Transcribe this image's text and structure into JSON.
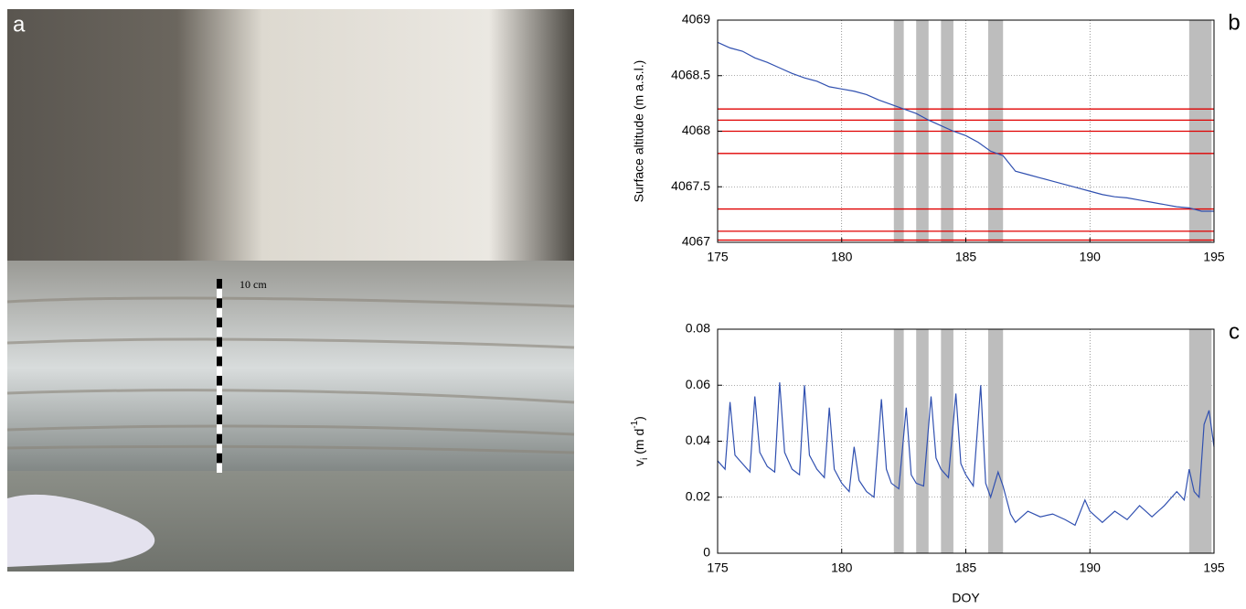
{
  "photo": {
    "panel_label": "a",
    "scale_label": "10 cm"
  },
  "chart_data": [
    {
      "type": "line",
      "panel_label": "b",
      "y_label": "Surface altitude (m a.s.l.)",
      "x": [
        175,
        175.5,
        176,
        176.5,
        177,
        177.5,
        178,
        178.5,
        179,
        179.5,
        180,
        180.5,
        181,
        181.5,
        182,
        182.5,
        183,
        183.5,
        184,
        184.5,
        185,
        185.5,
        186,
        186.5,
        187,
        187.5,
        188,
        188.5,
        189,
        189.5,
        190,
        190.5,
        191,
        191.5,
        192,
        192.5,
        193,
        193.5,
        194,
        194.5,
        195
      ],
      "values": [
        4068.8,
        4068.75,
        4068.72,
        4068.66,
        4068.62,
        4068.57,
        4068.52,
        4068.48,
        4068.45,
        4068.4,
        4068.38,
        4068.36,
        4068.33,
        4068.28,
        4068.24,
        4068.2,
        4068.16,
        4068.1,
        4068.05,
        4068.0,
        4067.96,
        4067.9,
        4067.82,
        4067.78,
        4067.64,
        4067.61,
        4067.58,
        4067.55,
        4067.52,
        4067.49,
        4067.46,
        4067.43,
        4067.41,
        4067.4,
        4067.38,
        4067.36,
        4067.34,
        4067.32,
        4067.31,
        4067.28,
        4067.28
      ],
      "color": "#3050b0",
      "hlines": [
        4068.2,
        4068.1,
        4068.0,
        4067.8,
        4067.3,
        4067.1,
        4067.02
      ],
      "hline_color": "#e00000",
      "shaded_spans": [
        [
          182.1,
          182.5
        ],
        [
          183.0,
          183.5
        ],
        [
          184.0,
          184.5
        ],
        [
          185.9,
          186.5
        ],
        [
          194.0,
          194.9
        ]
      ],
      "span_color": "#bdbdbd",
      "xlim": [
        175,
        195
      ],
      "xticks": [
        175,
        180,
        185,
        190,
        195
      ],
      "ylim": [
        4067,
        4069
      ],
      "yticks": [
        4067,
        4067.5,
        4068,
        4068.5,
        4069
      ],
      "grid": true
    },
    {
      "type": "line",
      "panel_label": "c",
      "x_label": "DOY",
      "y_label": {
        "base": "v",
        "sub": "i",
        "unit": " (m d",
        "sup": "-1",
        "close": ")"
      },
      "x": [
        175,
        175.3,
        175.5,
        175.7,
        176,
        176.3,
        176.5,
        176.7,
        177,
        177.3,
        177.5,
        177.7,
        178,
        178.3,
        178.5,
        178.7,
        179,
        179.3,
        179.5,
        179.7,
        180,
        180.3,
        180.5,
        180.7,
        181,
        181.3,
        181.6,
        181.8,
        182,
        182.3,
        182.6,
        182.8,
        183,
        183.3,
        183.6,
        183.8,
        184,
        184.3,
        184.6,
        184.8,
        185,
        185.3,
        185.6,
        185.8,
        186,
        186.3,
        186.5,
        186.8,
        187,
        187.5,
        188,
        188.5,
        189,
        189.4,
        189.8,
        190,
        190.5,
        191,
        191.5,
        192,
        192.5,
        193,
        193.5,
        193.8,
        194,
        194.2,
        194.4,
        194.6,
        194.8,
        195
      ],
      "values": [
        0.033,
        0.03,
        0.054,
        0.035,
        0.032,
        0.029,
        0.056,
        0.036,
        0.031,
        0.029,
        0.061,
        0.036,
        0.03,
        0.028,
        0.06,
        0.035,
        0.03,
        0.027,
        0.052,
        0.03,
        0.025,
        0.022,
        0.038,
        0.026,
        0.022,
        0.02,
        0.055,
        0.03,
        0.025,
        0.023,
        0.052,
        0.028,
        0.025,
        0.024,
        0.056,
        0.034,
        0.03,
        0.027,
        0.057,
        0.032,
        0.028,
        0.024,
        0.06,
        0.025,
        0.02,
        0.029,
        0.024,
        0.014,
        0.011,
        0.015,
        0.013,
        0.014,
        0.012,
        0.01,
        0.019,
        0.015,
        0.011,
        0.015,
        0.012,
        0.017,
        0.013,
        0.017,
        0.022,
        0.019,
        0.03,
        0.022,
        0.02,
        0.046,
        0.051,
        0.038
      ],
      "color": "#3050b0",
      "shaded_spans": [
        [
          182.1,
          182.5
        ],
        [
          183.0,
          183.5
        ],
        [
          184.0,
          184.5
        ],
        [
          185.9,
          186.5
        ],
        [
          194.0,
          194.9
        ]
      ],
      "span_color": "#bdbdbd",
      "xlim": [
        175,
        195
      ],
      "xticks": [
        175,
        180,
        185,
        190,
        195
      ],
      "ylim": [
        0,
        0.08
      ],
      "yticks": [
        0,
        0.02,
        0.04,
        0.06,
        0.08
      ],
      "grid": true
    }
  ]
}
